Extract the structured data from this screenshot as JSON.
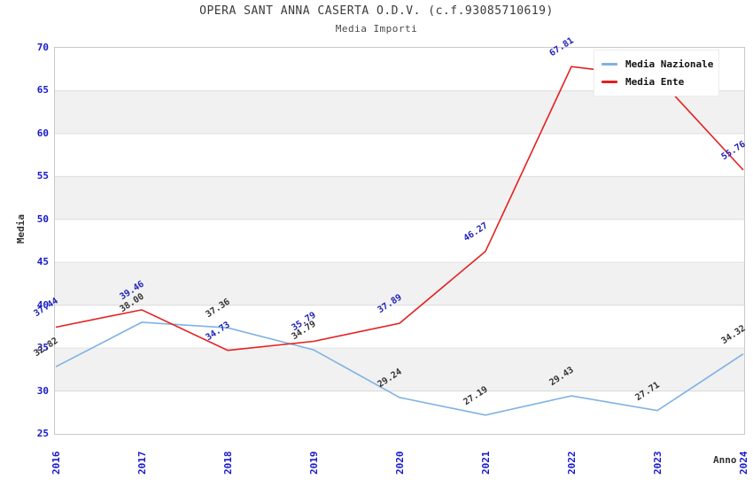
{
  "chart_data": {
    "type": "line",
    "title": "OPERA SANT ANNA CASERTA O.D.V. (c.f.93085710619)",
    "subtitle": "Media Importi",
    "xlabel": "Anno",
    "ylabel": "Media",
    "ylim": [
      25,
      70
    ],
    "yticks": [
      25,
      30,
      35,
      40,
      45,
      50,
      55,
      60,
      65,
      70
    ],
    "categories": [
      "2016",
      "2017",
      "2018",
      "2019",
      "2020",
      "2021",
      "2022",
      "2023",
      "2024"
    ],
    "series": [
      {
        "name": "Media Nazionale",
        "color": "#7eb2e4",
        "label_color": "#333333",
        "values": [
          32.82,
          38.0,
          37.36,
          34.79,
          29.24,
          27.19,
          29.43,
          27.71,
          34.32
        ],
        "labels": [
          "32.82",
          "38.00",
          "37.36",
          "34.79",
          "29.24",
          "27.19",
          "29.43",
          "27.71",
          "34.32"
        ]
      },
      {
        "name": "Media Ente",
        "color": "#e51f1f",
        "label_color": "#2020bb",
        "values": [
          37.44,
          39.46,
          34.73,
          35.79,
          37.89,
          46.27,
          67.81,
          66.6,
          55.76
        ],
        "labels": [
          "37.44",
          "39.46",
          "34.73",
          "35.79",
          "37.89",
          "46.27",
          "67.81",
          "",
          "55.76"
        ]
      }
    ],
    "legend": {
      "position": "top-right",
      "entries": [
        "Media Nazionale",
        "Media Ente"
      ]
    },
    "grid": "horizontal-bands",
    "tick_color": "#1818cc",
    "band_color": "#f1f1f1"
  }
}
